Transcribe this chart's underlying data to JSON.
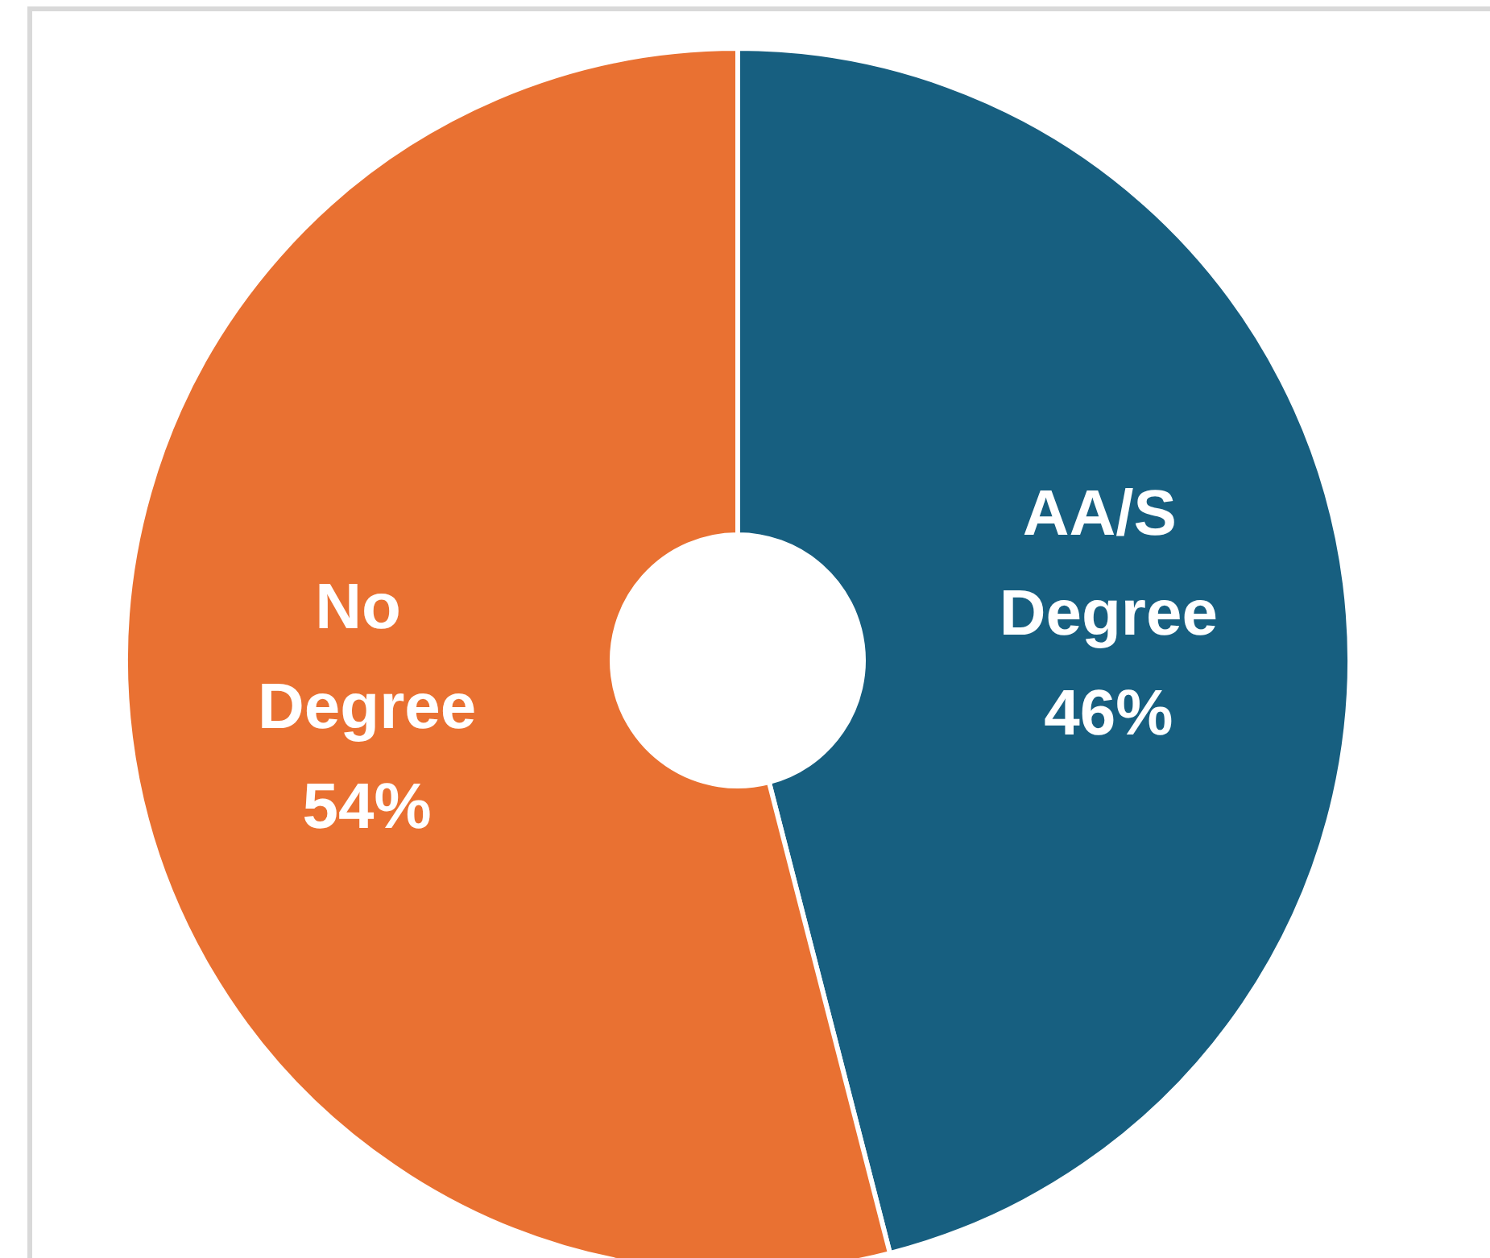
{
  "chart_data": {
    "type": "donut",
    "categories": [
      "AA/S Degree",
      "No Degree"
    ],
    "values": [
      46,
      54
    ],
    "colors": [
      "#175f80",
      "#e97132"
    ],
    "value_labels": [
      "46%",
      "54%"
    ]
  }
}
